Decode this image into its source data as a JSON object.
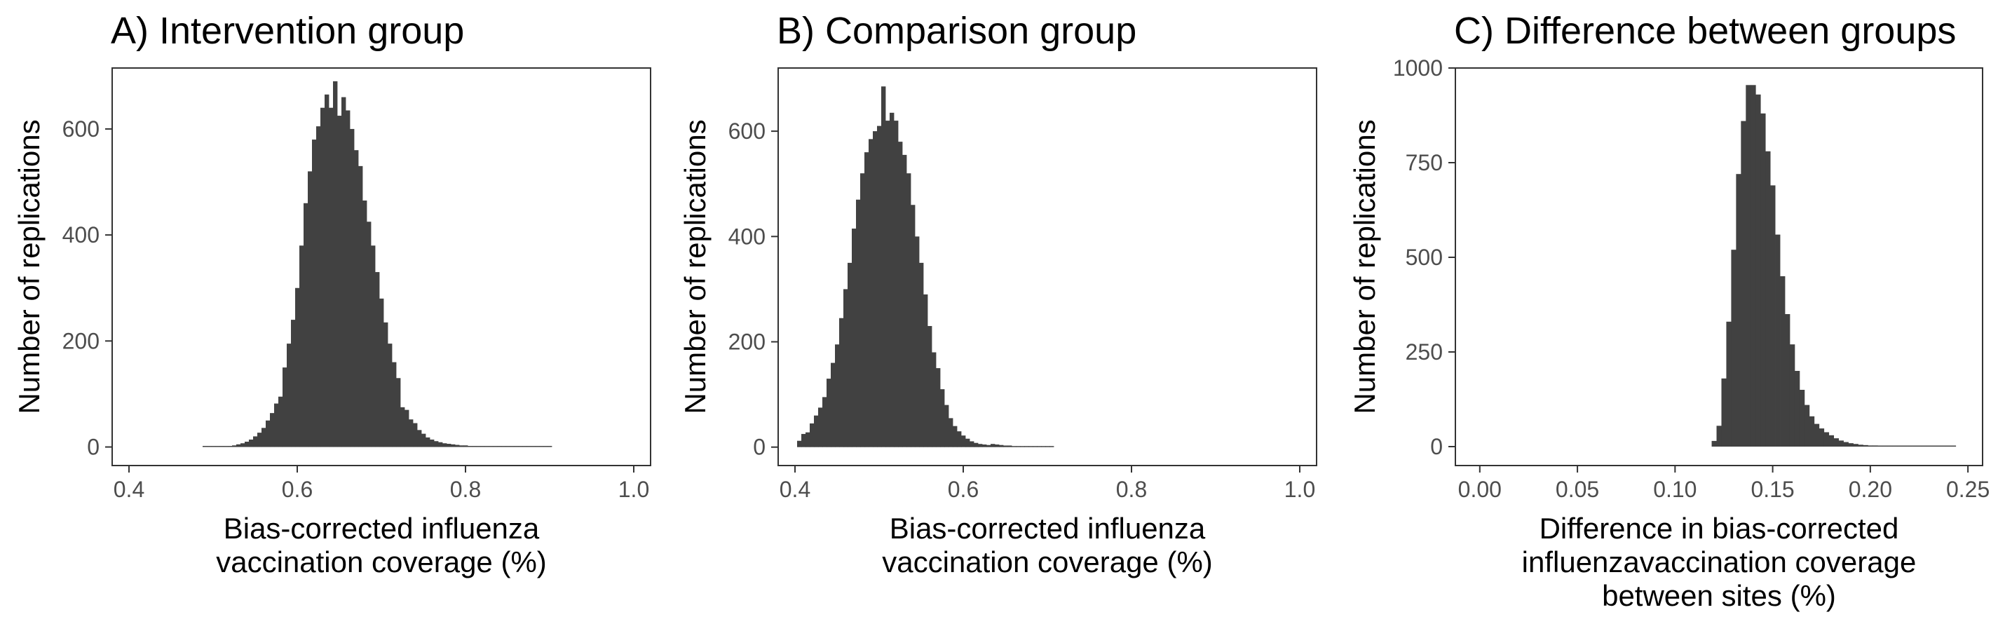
{
  "colors": {
    "bar": "#414141",
    "frame": "#333333",
    "tick_text": "#4d4d4d",
    "background": "#ffffff"
  },
  "chart_data": [
    {
      "type": "bar",
      "title": "A) Intervention group",
      "xlabel": [
        "Bias-corrected influenza",
        "vaccination coverage (%)"
      ],
      "ylabel": "Number of replications",
      "xlim": [
        0.38,
        1.02
      ],
      "ylim": [
        -35,
        715
      ],
      "xticks": [
        0.4,
        0.6,
        0.8,
        1.0
      ],
      "xtick_labels": [
        "0.4",
        "0.6",
        "0.8",
        "1.0"
      ],
      "yticks": [
        0,
        200,
        400,
        600
      ],
      "ytick_labels": [
        "0",
        "200",
        "400",
        "600"
      ],
      "bin_width": 0.005,
      "bins": [
        [
          0.49,
          2
        ],
        [
          0.495,
          1
        ],
        [
          0.5,
          0
        ],
        [
          0.505,
          1
        ],
        [
          0.51,
          2
        ],
        [
          0.515,
          1
        ],
        [
          0.52,
          2
        ],
        [
          0.525,
          3
        ],
        [
          0.53,
          5
        ],
        [
          0.535,
          7
        ],
        [
          0.54,
          10
        ],
        [
          0.545,
          14
        ],
        [
          0.55,
          20
        ],
        [
          0.555,
          27
        ],
        [
          0.56,
          36
        ],
        [
          0.565,
          50
        ],
        [
          0.57,
          64
        ],
        [
          0.575,
          82
        ],
        [
          0.58,
          95
        ],
        [
          0.585,
          150
        ],
        [
          0.59,
          195
        ],
        [
          0.595,
          240
        ],
        [
          0.6,
          300
        ],
        [
          0.605,
          380
        ],
        [
          0.61,
          460
        ],
        [
          0.615,
          520
        ],
        [
          0.62,
          580
        ],
        [
          0.625,
          605
        ],
        [
          0.63,
          640
        ],
        [
          0.635,
          665
        ],
        [
          0.64,
          640
        ],
        [
          0.645,
          690
        ],
        [
          0.65,
          625
        ],
        [
          0.655,
          660
        ],
        [
          0.66,
          635
        ],
        [
          0.665,
          600
        ],
        [
          0.67,
          560
        ],
        [
          0.675,
          530
        ],
        [
          0.68,
          465
        ],
        [
          0.685,
          425
        ],
        [
          0.69,
          380
        ],
        [
          0.695,
          330
        ],
        [
          0.7,
          280
        ],
        [
          0.705,
          235
        ],
        [
          0.71,
          195
        ],
        [
          0.715,
          160
        ],
        [
          0.72,
          130
        ],
        [
          0.725,
          75
        ],
        [
          0.73,
          70
        ],
        [
          0.735,
          52
        ],
        [
          0.74,
          45
        ],
        [
          0.745,
          32
        ],
        [
          0.75,
          25
        ],
        [
          0.755,
          18
        ],
        [
          0.76,
          14
        ],
        [
          0.765,
          11
        ],
        [
          0.77,
          9
        ],
        [
          0.775,
          7
        ],
        [
          0.78,
          6
        ],
        [
          0.785,
          5
        ],
        [
          0.79,
          4
        ],
        [
          0.795,
          3
        ],
        [
          0.8,
          3
        ],
        [
          0.805,
          2
        ],
        [
          0.81,
          2
        ],
        [
          0.815,
          1
        ],
        [
          0.82,
          2
        ],
        [
          0.825,
          1
        ],
        [
          0.83,
          1
        ],
        [
          0.835,
          1
        ],
        [
          0.84,
          2
        ],
        [
          0.845,
          0
        ],
        [
          0.85,
          0
        ],
        [
          0.855,
          1
        ],
        [
          0.86,
          0
        ],
        [
          0.865,
          1
        ],
        [
          0.87,
          0
        ],
        [
          0.875,
          0
        ],
        [
          0.88,
          0
        ],
        [
          0.885,
          1
        ],
        [
          0.89,
          0
        ],
        [
          0.895,
          0
        ],
        [
          0.9,
          1
        ]
      ]
    },
    {
      "type": "bar",
      "title": "B) Comparison group",
      "xlabel": [
        "Bias-corrected influenza",
        "vaccination coverage (%)"
      ],
      "ylabel": "Number of replications",
      "xlim": [
        0.38,
        1.02
      ],
      "ylim": [
        -35,
        720
      ],
      "xticks": [
        0.4,
        0.6,
        0.8,
        1.0
      ],
      "xtick_labels": [
        "0.4",
        "0.6",
        "0.8",
        "1.0"
      ],
      "yticks": [
        0,
        200,
        400,
        600
      ],
      "ytick_labels": [
        "0",
        "200",
        "400",
        "600"
      ],
      "bin_width": 0.005,
      "bins": [
        [
          0.405,
          12
        ],
        [
          0.41,
          25
        ],
        [
          0.415,
          28
        ],
        [
          0.42,
          45
        ],
        [
          0.425,
          60
        ],
        [
          0.43,
          75
        ],
        [
          0.435,
          95
        ],
        [
          0.44,
          130
        ],
        [
          0.445,
          160
        ],
        [
          0.45,
          195
        ],
        [
          0.455,
          245
        ],
        [
          0.46,
          300
        ],
        [
          0.465,
          350
        ],
        [
          0.47,
          415
        ],
        [
          0.475,
          470
        ],
        [
          0.48,
          520
        ],
        [
          0.485,
          560
        ],
        [
          0.49,
          585
        ],
        [
          0.495,
          600
        ],
        [
          0.5,
          610
        ],
        [
          0.505,
          685
        ],
        [
          0.51,
          620
        ],
        [
          0.515,
          635
        ],
        [
          0.52,
          620
        ],
        [
          0.525,
          580
        ],
        [
          0.53,
          555
        ],
        [
          0.535,
          520
        ],
        [
          0.54,
          460
        ],
        [
          0.545,
          400
        ],
        [
          0.55,
          350
        ],
        [
          0.555,
          290
        ],
        [
          0.56,
          230
        ],
        [
          0.565,
          180
        ],
        [
          0.57,
          150
        ],
        [
          0.575,
          110
        ],
        [
          0.58,
          80
        ],
        [
          0.585,
          55
        ],
        [
          0.59,
          40
        ],
        [
          0.595,
          30
        ],
        [
          0.6,
          22
        ],
        [
          0.605,
          16
        ],
        [
          0.61,
          11
        ],
        [
          0.615,
          8
        ],
        [
          0.62,
          6
        ],
        [
          0.625,
          5
        ],
        [
          0.63,
          4
        ],
        [
          0.635,
          6
        ],
        [
          0.64,
          5
        ],
        [
          0.645,
          4
        ],
        [
          0.65,
          3
        ],
        [
          0.655,
          3
        ],
        [
          0.66,
          2
        ],
        [
          0.665,
          2
        ],
        [
          0.67,
          1
        ],
        [
          0.675,
          2
        ],
        [
          0.68,
          1
        ],
        [
          0.685,
          1
        ],
        [
          0.69,
          0
        ],
        [
          0.695,
          1
        ],
        [
          0.7,
          0
        ],
        [
          0.705,
          1
        ]
      ]
    },
    {
      "type": "bar",
      "title": "C) Difference between groups",
      "xlabel": [
        "Difference in bias-corrected",
        "influenzavaccination coverage",
        "between sites (%)"
      ],
      "ylabel": "Number of replications",
      "xlim": [
        -0.0125,
        0.2575
      ],
      "ylim": [
        -50,
        1000
      ],
      "xticks": [
        0.0,
        0.05,
        0.1,
        0.15,
        0.2,
        0.25
      ],
      "xtick_labels": [
        "0.00",
        "0.05",
        "0.10",
        "0.15",
        "0.20",
        "0.25"
      ],
      "yticks": [
        0,
        250,
        500,
        750,
        1000
      ],
      "ytick_labels": [
        "0",
        "250",
        "500",
        "750",
        "1000"
      ],
      "bin_width": 0.0025,
      "bins": [
        [
          0.12,
          15
        ],
        [
          0.1225,
          55
        ],
        [
          0.125,
          180
        ],
        [
          0.1275,
          330
        ],
        [
          0.13,
          520
        ],
        [
          0.1325,
          720
        ],
        [
          0.135,
          860
        ],
        [
          0.1375,
          955
        ],
        [
          0.14,
          955
        ],
        [
          0.1425,
          930
        ],
        [
          0.145,
          880
        ],
        [
          0.1475,
          780
        ],
        [
          0.15,
          690
        ],
        [
          0.1525,
          560
        ],
        [
          0.155,
          450
        ],
        [
          0.1575,
          350
        ],
        [
          0.16,
          270
        ],
        [
          0.1625,
          200
        ],
        [
          0.165,
          150
        ],
        [
          0.1675,
          110
        ],
        [
          0.17,
          80
        ],
        [
          0.1725,
          60
        ],
        [
          0.175,
          48
        ],
        [
          0.1775,
          38
        ],
        [
          0.18,
          30
        ],
        [
          0.1825,
          22
        ],
        [
          0.185,
          16
        ],
        [
          0.1875,
          12
        ],
        [
          0.19,
          9
        ],
        [
          0.1925,
          7
        ],
        [
          0.195,
          5
        ],
        [
          0.1975,
          4
        ],
        [
          0.2,
          3
        ],
        [
          0.2025,
          3
        ],
        [
          0.205,
          2
        ],
        [
          0.2075,
          2
        ],
        [
          0.21,
          1
        ],
        [
          0.2125,
          1
        ],
        [
          0.215,
          1
        ],
        [
          0.2175,
          1
        ],
        [
          0.22,
          1
        ],
        [
          0.2225,
          1
        ],
        [
          0.225,
          1
        ],
        [
          0.2275,
          0
        ],
        [
          0.23,
          0
        ],
        [
          0.2325,
          0
        ],
        [
          0.235,
          0
        ],
        [
          0.2375,
          0
        ],
        [
          0.24,
          0
        ],
        [
          0.2425,
          1
        ]
      ]
    }
  ]
}
